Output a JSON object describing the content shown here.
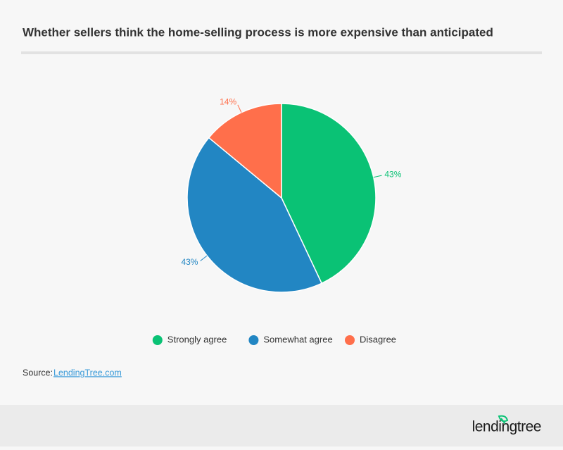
{
  "chart_data": {
    "type": "pie",
    "title": "Whether sellers think the home-selling process is more expensive than anticipated",
    "categories": [
      "Strongly agree",
      "Somewhat agree",
      "Disagree"
    ],
    "values": [
      43,
      43,
      14
    ],
    "value_labels": [
      "43%",
      "43%",
      "14%"
    ],
    "colors": [
      "#0ac275",
      "#2286c3",
      "#ff6f4b"
    ]
  },
  "source": {
    "label": "Source:",
    "link": "LendingTree.com"
  },
  "footer": {
    "logo": "lendingtree"
  }
}
